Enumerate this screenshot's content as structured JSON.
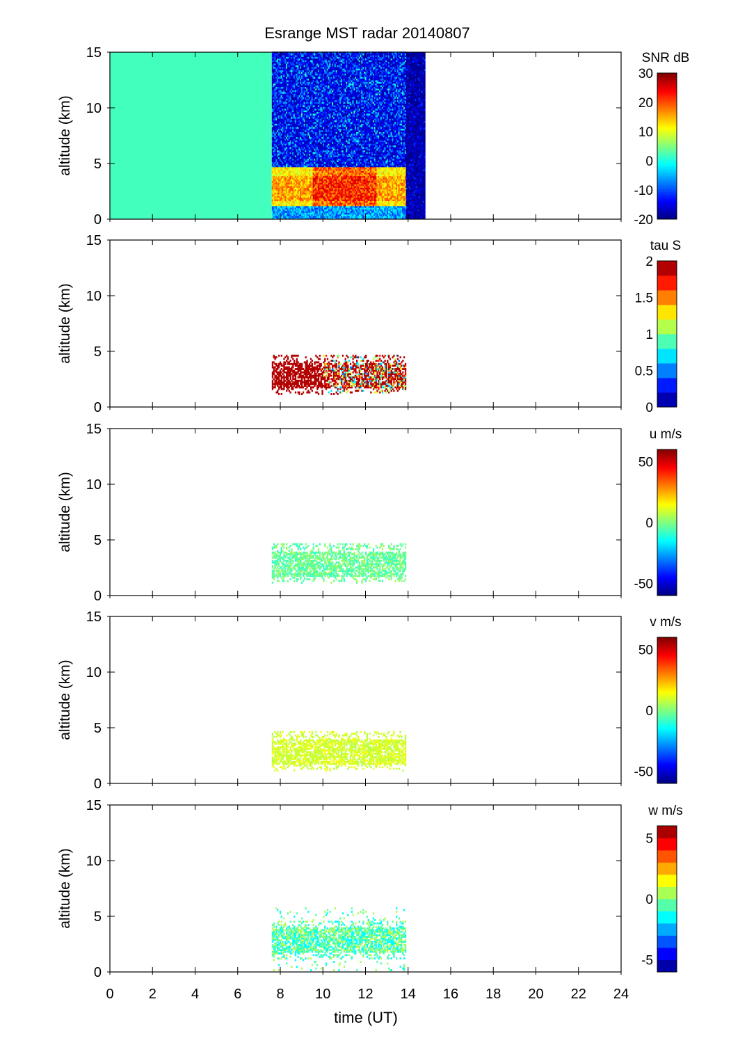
{
  "chart_data": {
    "type": "heatmap",
    "title": "Esrange MST radar 20140807",
    "xlabel": "time (UT)",
    "xlim": [
      0,
      24
    ],
    "xticks": [
      0,
      2,
      4,
      6,
      8,
      10,
      12,
      14,
      16,
      18,
      20,
      22,
      24
    ],
    "panels": [
      {
        "name": "snr",
        "ylabel": "altitude (km)",
        "ylim": [
          0,
          15
        ],
        "yticks": [
          0,
          5,
          10,
          15
        ],
        "colorbar_label": "SNR dB",
        "clim": [
          -20,
          30
        ],
        "cticks": [
          -20,
          -10,
          0,
          10,
          20,
          30
        ],
        "levels": 64,
        "segments": [
          {
            "t": [
              0,
              7.6
            ],
            "alt": [
              0,
              15
            ],
            "value": 2
          },
          {
            "t": [
              7.6,
              13.9
            ],
            "alt": [
              0,
              4.7
            ],
            "value_range": [
              0,
              25
            ]
          },
          {
            "t": [
              7.6,
              13.9
            ],
            "alt": [
              4.7,
              15
            ],
            "value_range": [
              -18,
              -2
            ]
          },
          {
            "t": [
              13.9,
              14.8
            ],
            "alt": [
              0,
              15
            ],
            "value_range": [
              -20,
              -12
            ]
          }
        ]
      },
      {
        "name": "tau",
        "ylabel": "altitude (km)",
        "ylim": [
          0,
          15
        ],
        "yticks": [
          0,
          5,
          10,
          15
        ],
        "colorbar_label": "tau S",
        "clim": [
          0,
          2
        ],
        "cticks": [
          0,
          0.5,
          1,
          1.5,
          2
        ],
        "levels": 10,
        "segments": [
          {
            "t": [
              7.6,
              13.9
            ],
            "alt": [
              1.1,
              4.6
            ],
            "value_range": [
              0.5,
              2
            ]
          }
        ]
      },
      {
        "name": "u",
        "ylabel": "altitude (km)",
        "ylim": [
          0,
          15
        ],
        "yticks": [
          0,
          5,
          10,
          15
        ],
        "colorbar_label": "u m/s",
        "clim": [
          -60,
          60
        ],
        "cticks": [
          -50,
          0,
          50
        ],
        "levels": 64,
        "segments": [
          {
            "t": [
              7.6,
              13.9
            ],
            "alt": [
              1.1,
              4.6
            ],
            "value_range": [
              -10,
              5
            ]
          }
        ]
      },
      {
        "name": "v",
        "ylabel": "altitude (km)",
        "ylim": [
          0,
          15
        ],
        "yticks": [
          0,
          5,
          10,
          15
        ],
        "colorbar_label": "v m/s",
        "clim": [
          -60,
          60
        ],
        "cticks": [
          -50,
          0,
          50
        ],
        "levels": 64,
        "segments": [
          {
            "t": [
              7.6,
              13.9
            ],
            "alt": [
              1.1,
              4.6
            ],
            "value_range": [
              5,
              15
            ]
          }
        ]
      },
      {
        "name": "w",
        "ylabel": "altitude (km)",
        "ylim": [
          0,
          15
        ],
        "yticks": [
          0,
          5,
          10,
          15
        ],
        "colorbar_label": "w m/s",
        "clim": [
          -6,
          6
        ],
        "cticks": [
          -5,
          0,
          5
        ],
        "levels": 12,
        "segments": [
          {
            "t": [
              7.6,
              13.9
            ],
            "alt": [
              0.1,
              5.8
            ],
            "value_range": [
              -2,
              1
            ]
          }
        ]
      }
    ]
  }
}
